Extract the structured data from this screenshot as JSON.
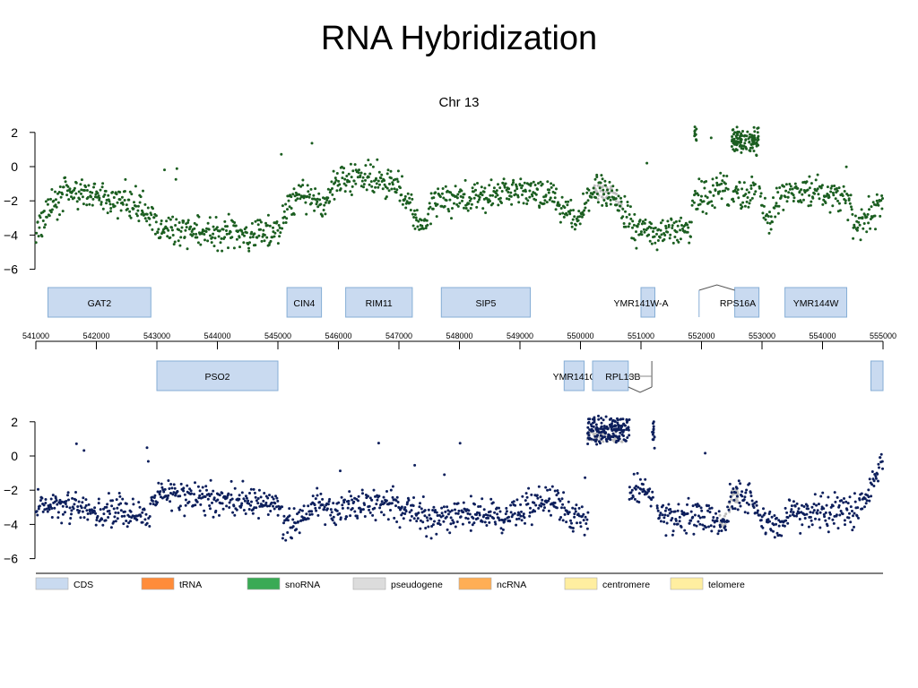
{
  "slide_title": "RNA Hybridization",
  "chart_data": {
    "type": "scatter",
    "title": "Chr 13",
    "x_range": [
      541000,
      555000
    ],
    "x_ticks": [
      541000,
      542000,
      543000,
      544000,
      545000,
      546000,
      547000,
      548000,
      549000,
      550000,
      551000,
      552000,
      553000,
      554000,
      555000
    ],
    "ylim": [
      -6,
      2.8
    ],
    "y_ticks": [
      2,
      0,
      -2,
      -4,
      -6
    ],
    "colors": {
      "top_series": "#1b5e20",
      "bottom_series": "#0d1f5c",
      "replicate": "#bdbdbd",
      "cds_fill": "#c9daf0",
      "cds_border": "#86aed6"
    },
    "series": [
      {
        "strand": "top",
        "profile": [
          [
            541000,
            -3.9
          ],
          [
            541200,
            -2.6
          ],
          [
            541500,
            -1.5
          ],
          [
            542000,
            -1.8
          ],
          [
            542600,
            -2.1
          ],
          [
            542900,
            -2.8
          ],
          [
            543000,
            -3.5
          ],
          [
            543400,
            -3.8
          ],
          [
            544000,
            -3.9
          ],
          [
            544500,
            -3.9
          ],
          [
            545000,
            -3.8
          ],
          [
            545150,
            -2.5
          ],
          [
            545300,
            -1.6
          ],
          [
            545600,
            -2.0
          ],
          [
            545800,
            -2.4
          ],
          [
            545950,
            -0.8
          ],
          [
            546400,
            -0.5
          ],
          [
            546800,
            -0.8
          ],
          [
            547000,
            -1.1
          ],
          [
            547200,
            -2.2
          ],
          [
            547300,
            -3.5
          ],
          [
            547450,
            -3.2
          ],
          [
            547600,
            -1.9
          ],
          [
            548000,
            -1.9
          ],
          [
            548600,
            -1.6
          ],
          [
            549000,
            -1.4
          ],
          [
            549500,
            -1.7
          ],
          [
            549700,
            -2.4
          ],
          [
            549950,
            -3.2
          ],
          [
            550200,
            -1.5
          ],
          [
            550500,
            -1.5
          ],
          [
            550700,
            -2.5
          ],
          [
            550900,
            -3.6
          ],
          [
            551400,
            -3.9
          ],
          [
            551800,
            -3.6
          ],
          [
            551850,
            -2.5
          ],
          [
            552000,
            -1.8
          ],
          [
            552300,
            -1.3
          ],
          [
            552400,
            -1.3
          ],
          [
            552600,
            -1.5
          ],
          [
            552950,
            -1.6
          ],
          [
            553100,
            -3.6
          ],
          [
            553300,
            -1.6
          ],
          [
            553800,
            -1.3
          ],
          [
            554400,
            -1.9
          ],
          [
            554550,
            -3.6
          ],
          [
            554700,
            -3.0
          ],
          [
            555000,
            -2.3
          ]
        ],
        "gaps": [
          [
            551860,
            551870
          ],
          [
            552460,
            552500
          ],
          [
            552900,
            552950
          ]
        ],
        "clusters": [
          {
            "x": [
              552500,
              552950
            ],
            "y": 1.5
          },
          {
            "x": [
              551880,
              551920
            ],
            "y": 1.8
          }
        ]
      },
      {
        "strand": "bottom",
        "profile": [
          [
            541000,
            -3.0
          ],
          [
            541400,
            -2.7
          ],
          [
            542000,
            -3.2
          ],
          [
            542600,
            -3.3
          ],
          [
            542900,
            -3.4
          ],
          [
            543000,
            -2.2
          ],
          [
            543600,
            -2.5
          ],
          [
            544000,
            -2.4
          ],
          [
            544500,
            -2.6
          ],
          [
            545000,
            -2.8
          ],
          [
            545100,
            -4.0
          ],
          [
            545400,
            -3.6
          ],
          [
            545600,
            -2.8
          ],
          [
            546000,
            -3.3
          ],
          [
            546500,
            -2.7
          ],
          [
            547000,
            -3.0
          ],
          [
            547300,
            -3.3
          ],
          [
            547500,
            -3.9
          ],
          [
            548000,
            -3.4
          ],
          [
            548500,
            -3.4
          ],
          [
            549000,
            -3.3
          ],
          [
            549300,
            -2.6
          ],
          [
            549600,
            -2.5
          ],
          [
            549900,
            -3.7
          ],
          [
            550100,
            -3.8
          ],
          [
            550850,
            -1.8
          ],
          [
            551200,
            -2.4
          ],
          [
            551300,
            -3.8
          ],
          [
            551800,
            -3.6
          ],
          [
            552400,
            -3.8
          ],
          [
            552500,
            -2.3
          ],
          [
            552800,
            -2.4
          ],
          [
            553000,
            -3.9
          ],
          [
            553300,
            -3.7
          ],
          [
            553700,
            -3.4
          ],
          [
            554000,
            -3.2
          ],
          [
            554500,
            -3.3
          ],
          [
            554700,
            -2.5
          ],
          [
            555000,
            -0.2
          ]
        ],
        "gaps": [
          [
            550130,
            550800
          ],
          [
            551200,
            551260
          ]
        ],
        "clusters": [
          {
            "x": [
              550120,
              550820
            ],
            "y": 1.5
          },
          {
            "x": [
              551180,
              551230
            ],
            "y": 1.3
          }
        ]
      }
    ],
    "features_top": [
      {
        "name": "GAT2",
        "start": 541200,
        "end": 542900
      },
      {
        "name": "CIN4",
        "start": 545150,
        "end": 545720
      },
      {
        "name": "RIM11",
        "start": 546120,
        "end": 547220
      },
      {
        "name": "SIP5",
        "start": 547700,
        "end": 549170
      },
      {
        "name": "YMR141W-A",
        "start": 551000,
        "end": 551230,
        "label_at": 551000
      },
      {
        "name": "RPS16A",
        "start": 552550,
        "end": 552950,
        "label_at": 552600
      },
      {
        "name": "YMR144W",
        "start": 553380,
        "end": 554400
      }
    ],
    "features_bottom": [
      {
        "name": "PSO2",
        "start": 543000,
        "end": 545000
      },
      {
        "name": "YMR141C",
        "start": 549730,
        "end": 550060,
        "label_at": 549900
      },
      {
        "name": "RPL13B",
        "start": 550200,
        "end": 550790,
        "label_at": 550700
      },
      {
        "name": "",
        "start": 554800,
        "end": 555000
      }
    ],
    "legend": [
      {
        "label": "CDS",
        "color": "#c9daf0"
      },
      {
        "label": "tRNA",
        "color": "#ff8c3a"
      },
      {
        "label": "snoRNA",
        "color": "#3aaa55"
      },
      {
        "label": "pseudogene",
        "color": "#dcdcdc"
      },
      {
        "label": "ncRNA",
        "color": "#ffae55"
      },
      {
        "label": "centromere",
        "color": "#ffeea0"
      },
      {
        "label": "telomere",
        "color": "#ffeea0"
      }
    ]
  }
}
